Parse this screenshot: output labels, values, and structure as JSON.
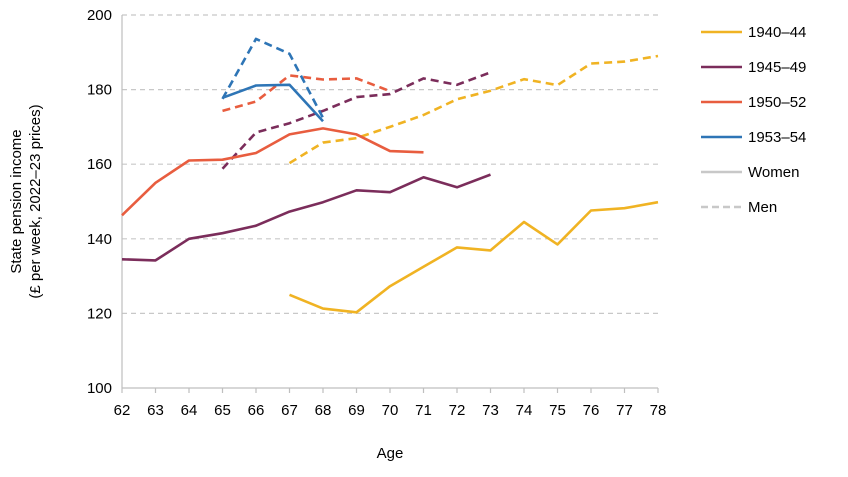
{
  "chart_data": {
    "type": "line",
    "xlabel": "Age",
    "ylabel_line1": "State pension income",
    "ylabel_line2": "(£ per week, 2022–23 prices)",
    "xlim": [
      62,
      78
    ],
    "ylim": [
      100,
      200
    ],
    "x_ticks": [
      "62",
      "63",
      "64",
      "65",
      "66",
      "67",
      "68",
      "69",
      "70",
      "71",
      "72",
      "73",
      "74",
      "75",
      "76",
      "77",
      "78"
    ],
    "y_ticks": [
      "100",
      "120",
      "140",
      "160",
      "180",
      "200"
    ],
    "grid": "horizontal dashed",
    "legend_position": "right",
    "legend": [
      {
        "label": "1940–44",
        "color": "#f0b323",
        "style": "solid"
      },
      {
        "label": "1945–49",
        "color": "#7b2d5b",
        "style": "solid"
      },
      {
        "label": "1950–52",
        "color": "#e85d3f",
        "style": "solid"
      },
      {
        "label": "1953–54",
        "color": "#2e75b6",
        "style": "solid"
      },
      {
        "label": "Women",
        "color": "#c8c8c8",
        "style": "solid"
      },
      {
        "label": "Men",
        "color": "#c8c8c8",
        "style": "dashed"
      }
    ],
    "series": [
      {
        "cohort": "1940–44",
        "sex": "Women",
        "color": "#f0b323",
        "dashed": false,
        "x": [
          67,
          68,
          69,
          70,
          71,
          72,
          73,
          74,
          75,
          76,
          77,
          78
        ],
        "y": [
          125,
          121.3,
          120.3,
          127.3,
          132.5,
          137.7,
          136.9,
          144.5,
          138.5,
          147.6,
          148.2,
          149.8
        ]
      },
      {
        "cohort": "1940–44",
        "sex": "Men",
        "color": "#f0b323",
        "dashed": true,
        "x": [
          67,
          68,
          69,
          70,
          71,
          72,
          73,
          74,
          75,
          76,
          77,
          78
        ],
        "y": [
          160.3,
          165.8,
          167,
          170,
          173.2,
          177.4,
          179.7,
          182.8,
          181.2,
          187,
          187.5,
          189
        ]
      },
      {
        "cohort": "1945–49",
        "sex": "Women",
        "color": "#7b2d5b",
        "dashed": false,
        "x": [
          62,
          63,
          64,
          65,
          66,
          67,
          68,
          69,
          70,
          71,
          72,
          73
        ],
        "y": [
          134.5,
          134.2,
          140,
          141.5,
          143.5,
          147.3,
          149.8,
          153,
          152.5,
          156.5,
          153.8,
          157.2
        ]
      },
      {
        "cohort": "1945–49",
        "sex": "Men",
        "color": "#7b2d5b",
        "dashed": true,
        "x": [
          65,
          66,
          67,
          68,
          69,
          70,
          71,
          72,
          73
        ],
        "y": [
          158.8,
          168.5,
          171,
          174.3,
          178,
          178.8,
          183,
          181.3,
          184.6
        ]
      },
      {
        "cohort": "1950–52",
        "sex": "Women",
        "color": "#e85d3f",
        "dashed": false,
        "x": [
          62,
          63,
          64,
          65,
          66,
          67,
          68,
          69,
          70,
          71
        ],
        "y": [
          146.3,
          155,
          161,
          161.2,
          163,
          168,
          169.6,
          168,
          163.5,
          163.2
        ]
      },
      {
        "cohort": "1950–52",
        "sex": "Men",
        "color": "#e85d3f",
        "dashed": true,
        "x": [
          65,
          66,
          67,
          68,
          69,
          70
        ],
        "y": [
          174.3,
          176.8,
          183.8,
          182.7,
          183,
          179.6
        ]
      },
      {
        "cohort": "1953–54",
        "sex": "Women",
        "color": "#2e75b6",
        "dashed": false,
        "x": [
          65,
          66,
          67,
          68
        ],
        "y": [
          177.8,
          181.1,
          181.3,
          171.5
        ]
      },
      {
        "cohort": "1953–54",
        "sex": "Men",
        "color": "#2e75b6",
        "dashed": true,
        "x": [
          65,
          66,
          67,
          68
        ],
        "y": [
          177.5,
          193.6,
          189.6,
          172.4
        ]
      }
    ]
  }
}
